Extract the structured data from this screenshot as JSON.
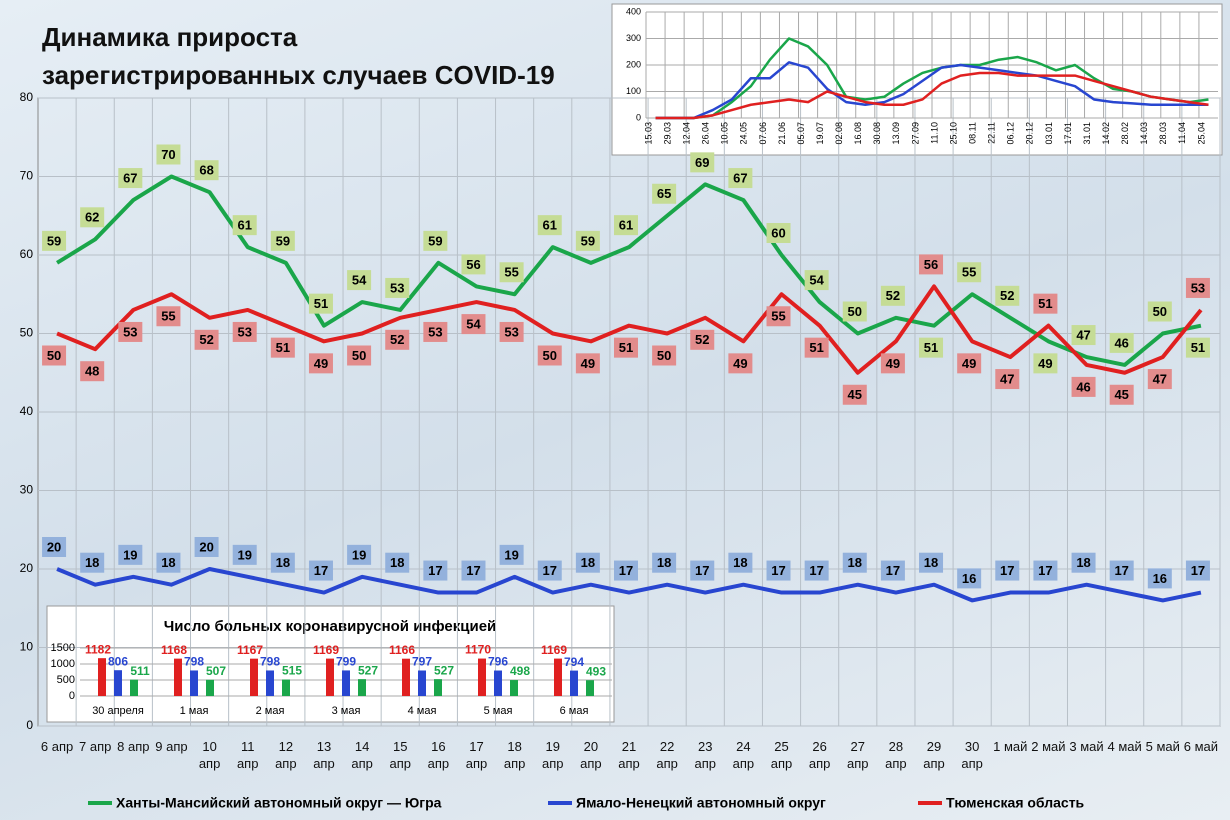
{
  "chart_data": [
    {
      "type": "line",
      "title": [
        "Динамика прироста",
        "зарегистрированных случаев COVID-19"
      ],
      "categories": [
        "6 апр",
        "7 апр",
        "8 апр",
        "9 апр",
        "10 апр",
        "11 апр",
        "12 апр",
        "13 апр",
        "14 апр",
        "15 апр",
        "16 апр",
        "17 апр",
        "18 апр",
        "19 апр",
        "20 апр",
        "21 апр",
        "22 апр",
        "23 апр",
        "24 апр",
        "25 апр",
        "26 апр",
        "27 апр",
        "28 апр",
        "29 апр",
        "30 апр",
        "1 май",
        "2 май",
        "3 май",
        "4 май",
        "5 май",
        "6 май"
      ],
      "series": [
        {
          "name": "Ханты-Мансийский автономный округ — Югра",
          "color": "#1aa64a",
          "label_color": "#c5dc95",
          "values": [
            59,
            62,
            67,
            70,
            68,
            61,
            59,
            51,
            54,
            53,
            59,
            56,
            55,
            61,
            59,
            61,
            65,
            69,
            67,
            60,
            54,
            50,
            52,
            51,
            55,
            52,
            49,
            47,
            46,
            50,
            51
          ]
        },
        {
          "name": "Ямало-Ненецкий автономный округ",
          "color": "#2846d0",
          "label_color": "#93b1dc",
          "values": [
            20,
            18,
            19,
            18,
            20,
            19,
            18,
            17,
            19,
            18,
            17,
            17,
            19,
            17,
            18,
            17,
            18,
            17,
            18,
            17,
            17,
            18,
            17,
            18,
            16,
            17,
            17,
            18,
            17,
            16,
            17
          ]
        },
        {
          "name": "Тюменская область",
          "color": "#e02020",
          "label_color": "#e28c8c",
          "values": [
            50,
            48,
            53,
            55,
            52,
            53,
            51,
            49,
            50,
            52,
            53,
            54,
            53,
            50,
            49,
            51,
            50,
            52,
            49,
            55,
            51,
            45,
            49,
            56,
            49,
            47,
            51,
            46,
            45,
            47,
            53
          ]
        }
      ],
      "ylim": [
        0,
        80
      ],
      "yticks": [
        0,
        10,
        20,
        30,
        40,
        50,
        60,
        70,
        80
      ],
      "grid": true
    },
    {
      "type": "line",
      "categories": [
        "15.03",
        "29.03",
        "12.04",
        "26.04",
        "10.05",
        "24.05",
        "07.06",
        "21.06",
        "05.07",
        "19.07",
        "02.08",
        "16.08",
        "30.08",
        "13.09",
        "27.09",
        "11.10",
        "25.10",
        "08.11",
        "22.11",
        "06.12",
        "20.12",
        "03.01",
        "17.01",
        "31.01",
        "14.02",
        "28.02",
        "14.03",
        "28.03",
        "11.04",
        "25.04"
      ],
      "series": [
        {
          "color": "#1aa64a",
          "values": [
            0,
            0,
            0,
            10,
            60,
            120,
            220,
            300,
            270,
            200,
            80,
            70,
            80,
            130,
            170,
            190,
            200,
            200,
            220,
            230,
            210,
            180,
            200,
            150,
            110,
            100,
            80,
            70,
            60,
            70
          ]
        },
        {
          "color": "#2846d0",
          "values": [
            0,
            0,
            0,
            30,
            70,
            150,
            150,
            210,
            190,
            110,
            60,
            50,
            60,
            90,
            140,
            190,
            200,
            190,
            180,
            170,
            160,
            140,
            120,
            70,
            60,
            55,
            50,
            50,
            50,
            50
          ]
        },
        {
          "color": "#e02020",
          "values": [
            0,
            0,
            0,
            10,
            30,
            50,
            60,
            70,
            60,
            100,
            80,
            60,
            50,
            50,
            70,
            130,
            160,
            170,
            170,
            160,
            160,
            160,
            160,
            140,
            120,
            100,
            80,
            70,
            60,
            50
          ]
        }
      ],
      "ylim": [
        0,
        400
      ],
      "yticks": [
        0,
        100,
        200,
        300,
        400
      ],
      "grid": true
    },
    {
      "type": "bar",
      "title": "Число больных коронавирусной  инфекцией",
      "categories": [
        "30 апреля",
        "1 мая",
        "2 мая",
        "3 мая",
        "4 мая",
        "5 мая",
        "6 мая"
      ],
      "series": [
        {
          "color": "#e02020",
          "values": [
            1182,
            1168,
            1167,
            1169,
            1166,
            1170,
            1169
          ]
        },
        {
          "color": "#2846d0",
          "values": [
            806,
            798,
            798,
            799,
            797,
            796,
            794
          ]
        },
        {
          "color": "#1aa64a",
          "values": [
            511,
            507,
            515,
            527,
            527,
            498,
            493
          ]
        }
      ],
      "ylim": [
        0,
        1500
      ],
      "yticks": [
        0,
        500,
        1000,
        1500
      ],
      "grid": true
    }
  ]
}
